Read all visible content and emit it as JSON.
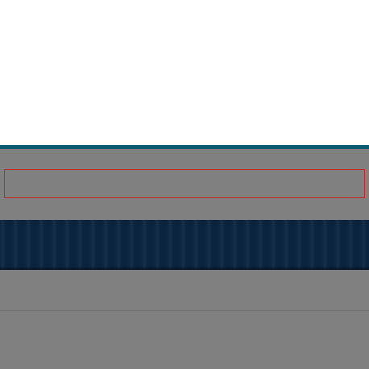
{
  "colors": {
    "accent": "#0a5a70",
    "overlay": "#808080",
    "banner": "#0a2540",
    "highlight": "#d02020"
  }
}
